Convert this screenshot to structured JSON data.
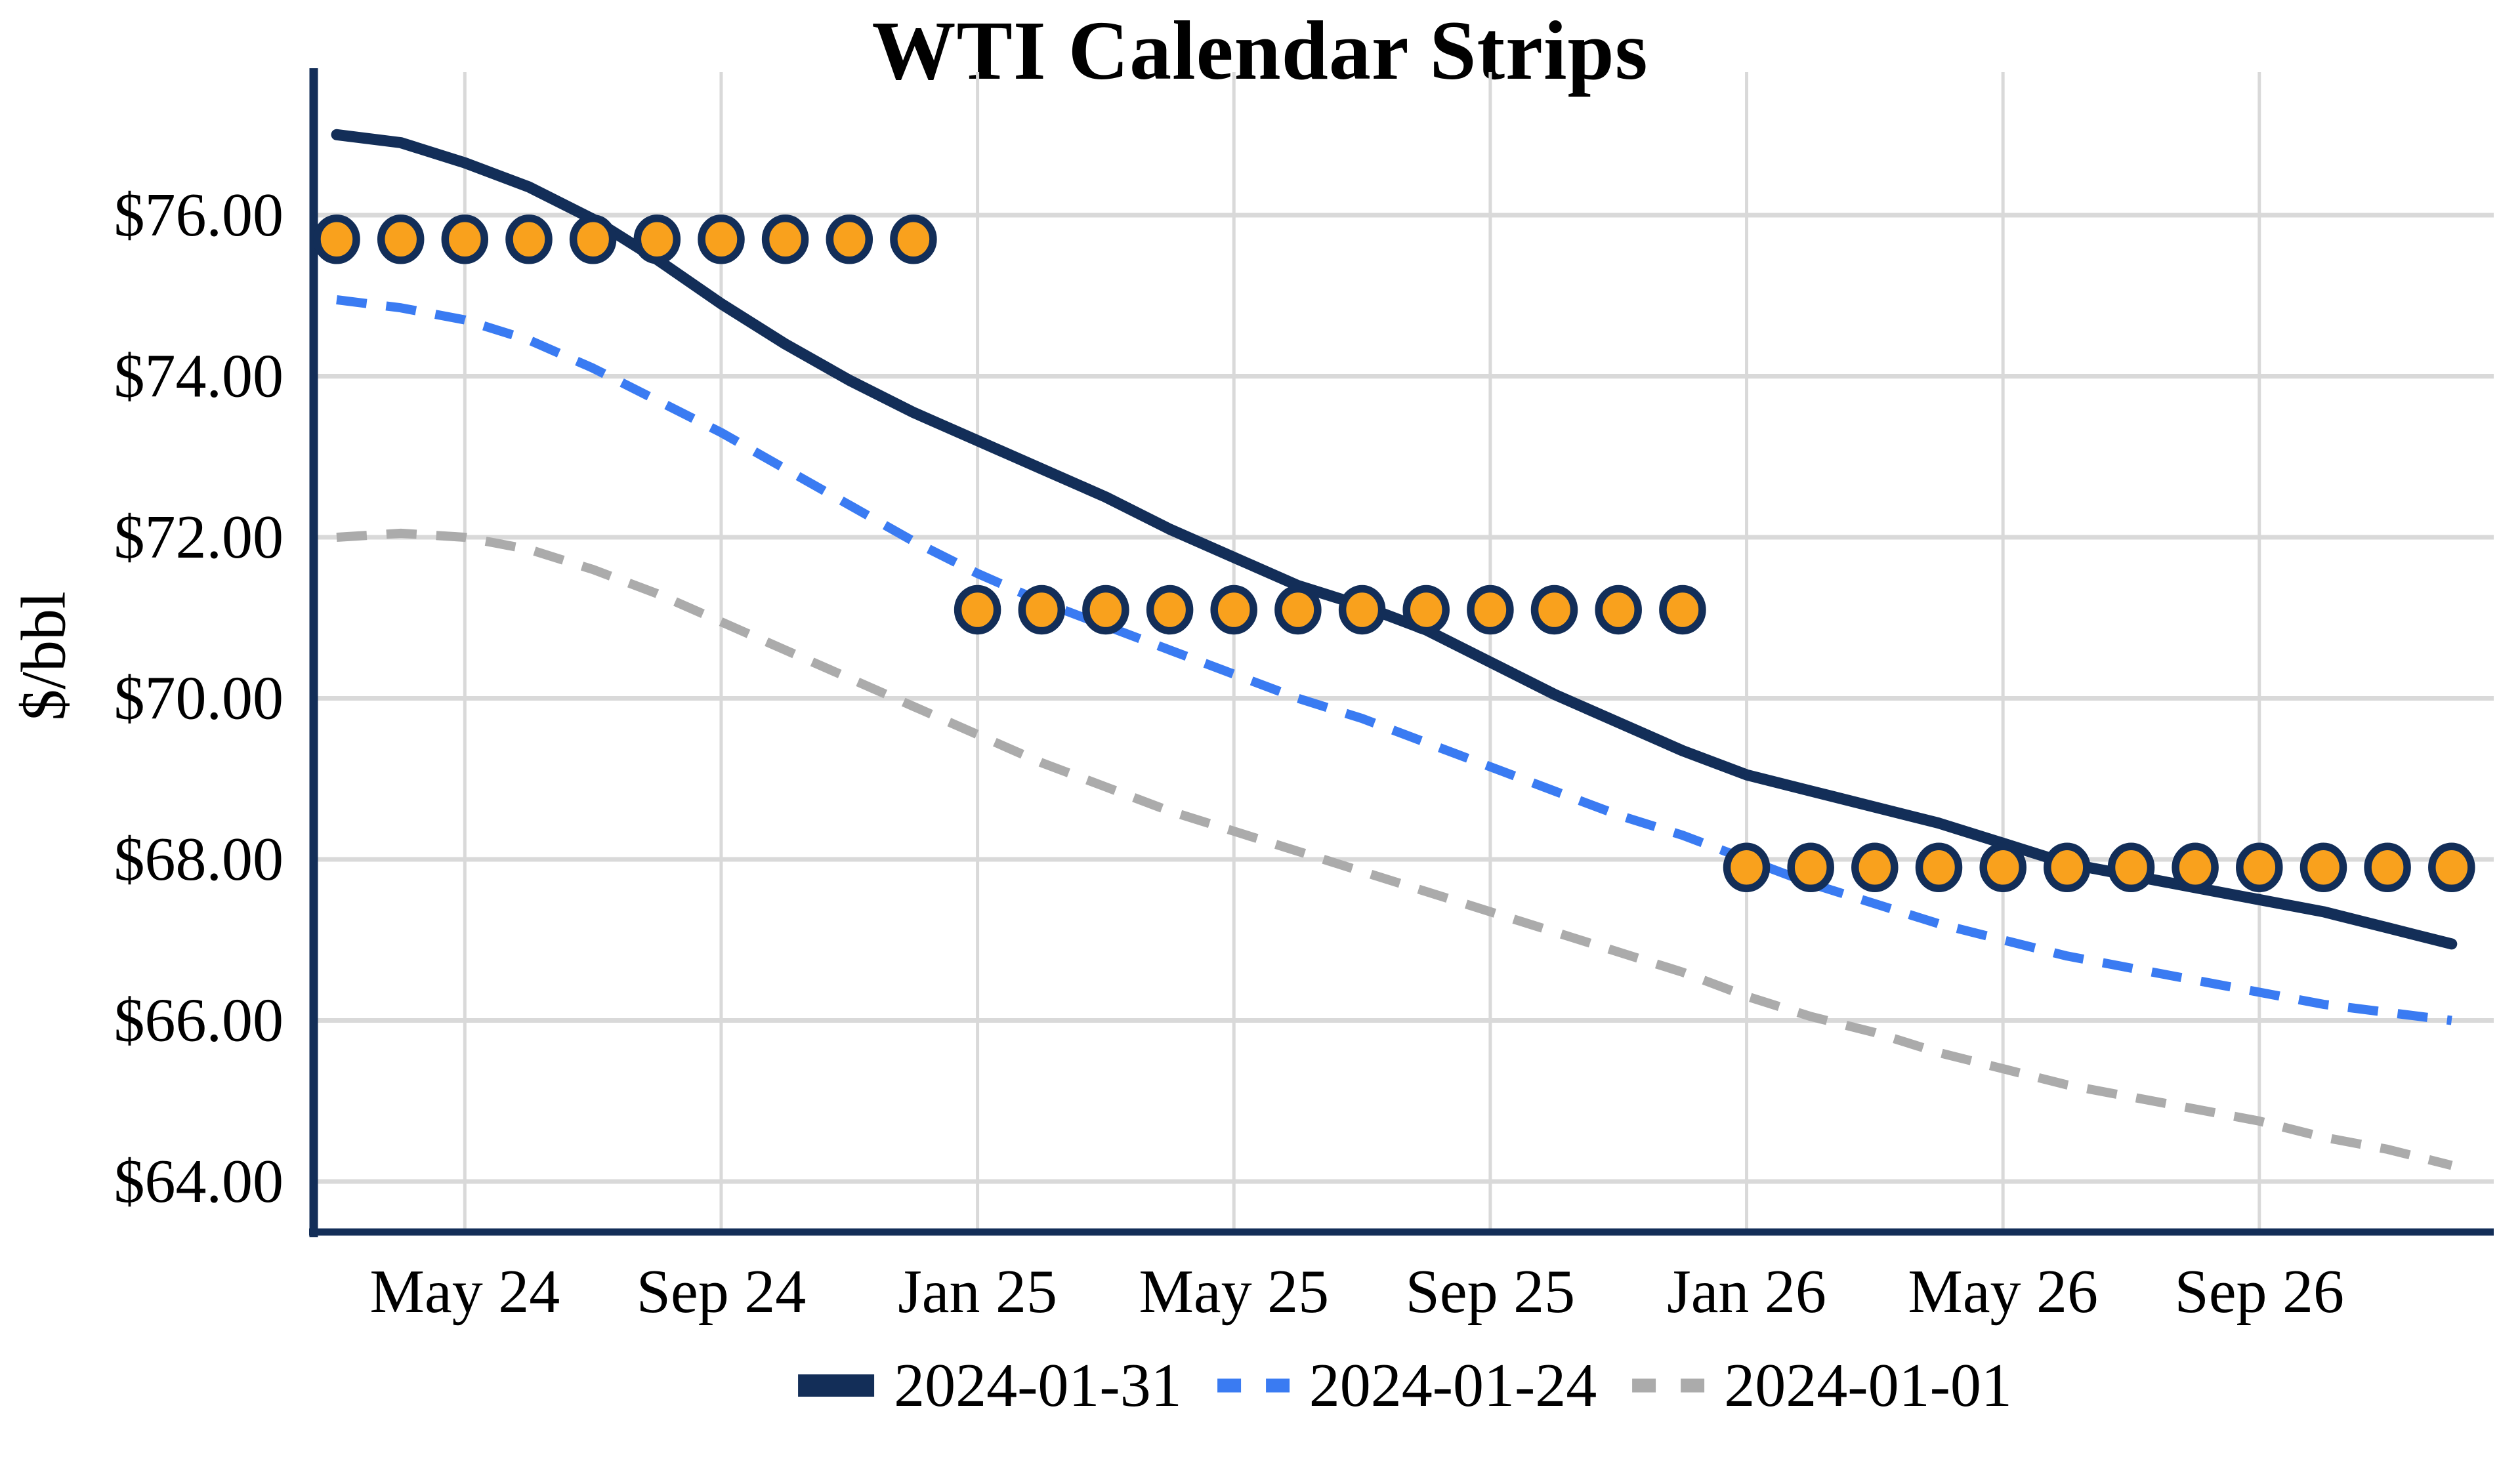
{
  "title": "WTI Calendar Strips",
  "y_axis": {
    "label": "$/bbl",
    "ticks": [
      {
        "label": "$76.00",
        "value": 76
      },
      {
        "label": "$74.00",
        "value": 74
      },
      {
        "label": "$72.00",
        "value": 72
      },
      {
        "label": "$70.00",
        "value": 70
      },
      {
        "label": "$68.00",
        "value": 68
      },
      {
        "label": "$66.00",
        "value": 66
      },
      {
        "label": "$64.00",
        "value": 64
      }
    ]
  },
  "x_axis": {
    "ticks": [
      {
        "label": "May 24",
        "month_index": 2
      },
      {
        "label": "Sep 24",
        "month_index": 6
      },
      {
        "label": "Jan 25",
        "month_index": 10
      },
      {
        "label": "May 25",
        "month_index": 14
      },
      {
        "label": "Sep 25",
        "month_index": 18
      },
      {
        "label": "Jan 26",
        "month_index": 22
      },
      {
        "label": "May 26",
        "month_index": 26
      },
      {
        "label": "Sep 26",
        "month_index": 30
      }
    ]
  },
  "legend": [
    {
      "label": "2024-01-31",
      "color": "#132E58",
      "style": "solid"
    },
    {
      "label": "2024-01-24",
      "color": "#3A7BF2",
      "style": "dashed"
    },
    {
      "label": "2024-01-01",
      "color": "#ABABAB",
      "style": "dashed"
    }
  ],
  "colors": {
    "navy": "#132E58",
    "blue": "#3A7BF2",
    "gray": "#ABABAB",
    "marker_fill": "#F9A11D",
    "marker_ring": "#132E58",
    "gridline": "#D9D9D9"
  },
  "chart_data": {
    "type": "line",
    "title": "WTI Calendar Strips",
    "ylabel": "$/bbl",
    "xlabel": "",
    "ylim": [
      63.4,
      77.8
    ],
    "grid": true,
    "legend_position": "bottom-center",
    "x": [
      "Mar 24",
      "Apr 24",
      "May 24",
      "Jun 24",
      "Jul 24",
      "Aug 24",
      "Sep 24",
      "Oct 24",
      "Nov 24",
      "Dec 24",
      "Jan 25",
      "Feb 25",
      "Mar 25",
      "Apr 25",
      "May 25",
      "Jun 25",
      "Jul 25",
      "Aug 25",
      "Sep 25",
      "Oct 25",
      "Nov 25",
      "Dec 25",
      "Jan 26",
      "Feb 26",
      "Mar 26",
      "Apr 26",
      "May 26",
      "Jun 26",
      "Jul 26",
      "Aug 26",
      "Sep 26",
      "Oct 26",
      "Nov 26",
      "Dec 26"
    ],
    "series": [
      {
        "name": "2024-01-31",
        "style": "solid",
        "color": "#132E58",
        "stroke_width": 17,
        "values": [
          77.0,
          76.9,
          76.65,
          76.35,
          75.95,
          75.45,
          74.9,
          74.4,
          73.95,
          73.55,
          73.2,
          72.85,
          72.5,
          72.1,
          71.75,
          71.4,
          71.15,
          70.85,
          70.45,
          70.05,
          69.7,
          69.35,
          69.05,
          68.85,
          68.65,
          68.45,
          68.2,
          67.95,
          67.8,
          67.65,
          67.5,
          67.35,
          67.15,
          66.95
        ]
      },
      {
        "name": "2024-01-24",
        "style": "dashed",
        "color": "#3A7BF2",
        "stroke_width": 14,
        "values": [
          74.95,
          74.85,
          74.7,
          74.45,
          74.1,
          73.7,
          73.3,
          72.85,
          72.4,
          71.95,
          71.55,
          71.2,
          70.9,
          70.6,
          70.3,
          70.0,
          69.75,
          69.45,
          69.15,
          68.85,
          68.55,
          68.3,
          68.0,
          67.7,
          67.45,
          67.2,
          67.0,
          66.8,
          66.65,
          66.5,
          66.35,
          66.2,
          66.1,
          66.0
        ]
      },
      {
        "name": "2024-01-01",
        "style": "dashed",
        "color": "#ABABAB",
        "stroke_width": 14,
        "values": [
          72.0,
          72.05,
          72.0,
          71.85,
          71.6,
          71.3,
          70.95,
          70.6,
          70.25,
          69.9,
          69.55,
          69.2,
          68.9,
          68.6,
          68.35,
          68.1,
          67.85,
          67.6,
          67.35,
          67.1,
          66.85,
          66.6,
          66.3,
          66.05,
          65.85,
          65.6,
          65.4,
          65.2,
          65.05,
          64.9,
          64.75,
          64.55,
          64.4,
          64.2
        ]
      }
    ],
    "calendar_strip_markers": [
      {
        "year": "2024",
        "value": 75.7,
        "from": "Mar 24",
        "to": "Dec 24",
        "start_index": 0,
        "count": 10
      },
      {
        "year": "2025",
        "value": 71.1,
        "from": "Jan 25",
        "to": "Dec 25",
        "start_index": 10,
        "count": 12
      },
      {
        "year": "2026",
        "value": 67.9,
        "from": "Jan 26",
        "to": "Dec 26",
        "start_index": 22,
        "count": 12
      }
    ]
  }
}
